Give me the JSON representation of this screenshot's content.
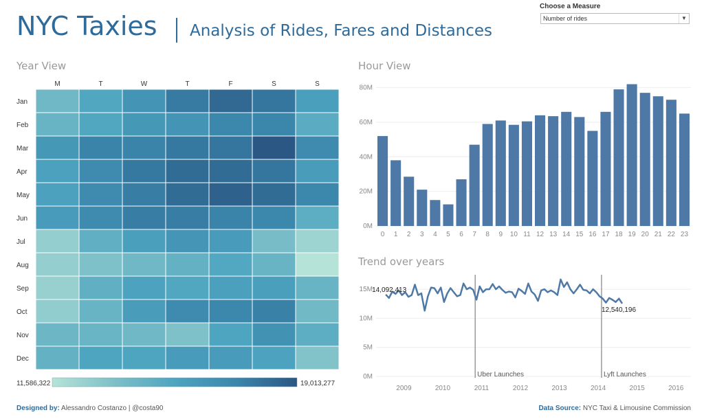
{
  "header": {
    "title": "NYC Taxies",
    "subtitle": "Analysis of Rides, Fares and Distances"
  },
  "filter": {
    "label": "Choose a Measure",
    "value": "Number of rides"
  },
  "sections": {
    "year_view": "Year View",
    "hour_view": "Hour View",
    "trend": "Trend over years"
  },
  "footer": {
    "designed_label": "Designed by:",
    "designer": "Alessandro Costanzo",
    "separator": "|",
    "handle": "@costa90",
    "source_label": "Data Source:",
    "source": "NYC Taxi & Limousine Commission"
  },
  "colors": {
    "title": "#2e6b9b",
    "bar": "#4e79a7",
    "line": "#4e79a7",
    "heat_low": "#b5e3d8",
    "heat_high": "#2a5783"
  },
  "chart_data": [
    {
      "type": "heatmap",
      "name": "year_view",
      "columns": [
        "M",
        "T",
        "W",
        "T",
        "F",
        "S",
        "S"
      ],
      "rows": [
        "Jan",
        "Feb",
        "Mar",
        "Apr",
        "May",
        "Jun",
        "Jul",
        "Aug",
        "Sep",
        "Oct",
        "Nov",
        "Dec"
      ],
      "values": [
        [
          14.0,
          15.2,
          16.3,
          17.6,
          18.3,
          17.8,
          15.7
        ],
        [
          14.3,
          15.2,
          16.1,
          16.3,
          17.1,
          17.2,
          14.8
        ],
        [
          16.1,
          17.3,
          17.3,
          17.7,
          17.8,
          19.01,
          16.9
        ],
        [
          15.5,
          16.9,
          17.7,
          18.2,
          18.2,
          17.8,
          15.8
        ],
        [
          15.5,
          16.9,
          17.5,
          18.2,
          18.6,
          18.2,
          17.1
        ],
        [
          15.9,
          16.9,
          17.5,
          17.5,
          17.3,
          17.1,
          14.7
        ],
        [
          12.7,
          14.6,
          15.7,
          16.2,
          15.9,
          13.7,
          12.4
        ],
        [
          12.7,
          13.4,
          14.0,
          14.5,
          15.1,
          14.3,
          11.59
        ],
        [
          12.6,
          14.6,
          15.4,
          15.2,
          15.6,
          15.7,
          14.3
        ],
        [
          12.8,
          14.3,
          15.8,
          16.9,
          17.1,
          17.4,
          13.9
        ],
        [
          14.1,
          14.2,
          14.0,
          13.4,
          15.3,
          16.5,
          14.7
        ],
        [
          14.5,
          15.3,
          15.3,
          15.9,
          15.9,
          15.4,
          13.3
        ]
      ],
      "unit": "M rides",
      "legend": {
        "min_label": "11,586,322",
        "max_label": "19,013,277"
      }
    },
    {
      "type": "bar",
      "name": "hour_view",
      "categories": [
        "0",
        "1",
        "2",
        "3",
        "4",
        "5",
        "6",
        "7",
        "8",
        "9",
        "10",
        "11",
        "12",
        "13",
        "14",
        "15",
        "16",
        "17",
        "18",
        "19",
        "20",
        "21",
        "22",
        "23"
      ],
      "values": [
        52,
        38,
        28.5,
        21,
        15,
        12.5,
        27,
        47,
        59,
        61,
        58.5,
        60.5,
        64,
        63.5,
        66,
        63,
        55,
        66,
        79,
        82,
        77,
        75,
        73,
        65
      ],
      "unit": "M",
      "ylim": [
        0,
        85
      ],
      "yticks": [
        0,
        20,
        40,
        60,
        80
      ],
      "ytick_labels": [
        "0M",
        "20M",
        "40M",
        "60M",
        "80M"
      ]
    },
    {
      "type": "line",
      "name": "trend",
      "x_start": 2009.0,
      "x_step": 0.0833,
      "values": [
        14.09,
        13.5,
        14.6,
        14.2,
        14.8,
        14.0,
        14.5,
        13.7,
        14.0,
        15.8,
        14.0,
        14.3,
        11.3,
        13.8,
        15.3,
        15.2,
        14.3,
        15.3,
        12.8,
        14.3,
        15.2,
        14.5,
        13.8,
        14.0,
        16.0,
        15.0,
        15.3,
        14.9,
        13.2,
        15.5,
        14.5,
        15.0,
        15.0,
        15.9,
        15.0,
        15.5,
        14.9,
        14.4,
        14.6,
        14.5,
        13.6,
        15.1,
        14.7,
        14.2,
        16.0,
        14.6,
        14.1,
        13.0,
        14.8,
        15.0,
        14.5,
        14.8,
        14.5,
        14.0,
        16.7,
        15.4,
        16.2,
        15.0,
        14.3,
        15.0,
        15.8,
        14.9,
        14.8,
        14.3,
        15.0,
        14.5,
        13.8,
        13.4,
        12.7,
        13.5,
        13.2,
        12.8,
        13.4,
        12.54
      ],
      "ylim": [
        0,
        17.5
      ],
      "yticks": [
        0,
        5,
        10,
        15
      ],
      "ytick_labels": [
        "0M",
        "5M",
        "10M",
        "15M"
      ],
      "xticks": [
        2009,
        2010,
        2011,
        2012,
        2013,
        2014,
        2015,
        2016
      ],
      "xlim": [
        2008.75,
        2016.85
      ],
      "first_label": "14,092,413",
      "last_label": "12,540,196",
      "annotations": [
        {
          "x": 2011.3,
          "label": "Uber Launches"
        },
        {
          "x": 2014.55,
          "label": "Lyft Launches"
        }
      ]
    }
  ]
}
